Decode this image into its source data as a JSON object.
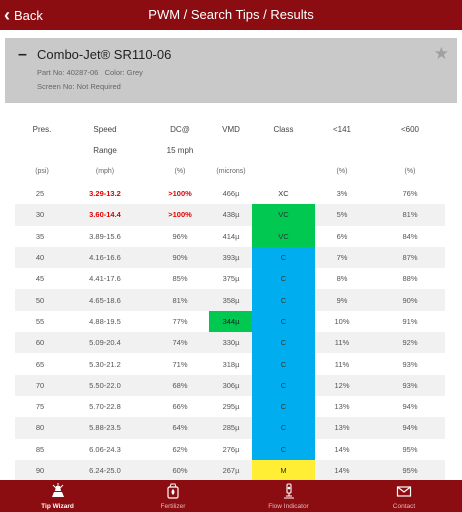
{
  "nav": {
    "back_label": "Back",
    "title": "PWM / Search Tips / Results"
  },
  "product": {
    "collapse_symbol": "–",
    "name": "Combo-Jet® SR110-06",
    "part_no": "Part No: 40287-06",
    "color": "Color: Grey",
    "screen_no": "Screen No: Not Required",
    "star_symbol": "★"
  },
  "table": {
    "headers": {
      "pres": "Pres.",
      "speed": "Speed",
      "speed2": "Range",
      "dc": "DC@",
      "dc2": "15 mph",
      "vmd": "VMD",
      "class": "Class",
      "p141": "<141",
      "p600": "<600"
    },
    "units": {
      "pres": "(psi)",
      "speed": "(mph)",
      "dc": "(%)",
      "vmd": "(microns)",
      "class": "",
      "p141": "(%)",
      "p600": "(%)"
    },
    "class_colors": {
      "XC": "#ffffff",
      "VC": "#00c850",
      "C": "#00aef0",
      "M": "#ffee33"
    },
    "rows": [
      {
        "pres": "25",
        "speed": "3.29-13.2",
        "dc": ">100%",
        "vmd": "466µ",
        "class": "XC",
        "p141": "3%",
        "p600": "76%",
        "red": true
      },
      {
        "pres": "30",
        "speed": "3.60-14.4",
        "dc": ">100%",
        "vmd": "438µ",
        "class": "VC",
        "p141": "5%",
        "p600": "81%",
        "red": true
      },
      {
        "pres": "35",
        "speed": "3.89-15.6",
        "dc": "96%",
        "vmd": "414µ",
        "class": "VC",
        "p141": "6%",
        "p600": "84%"
      },
      {
        "pres": "40",
        "speed": "4.16-16.6",
        "dc": "90%",
        "vmd": "393µ",
        "class": "C",
        "p141": "7%",
        "p600": "87%"
      },
      {
        "pres": "45",
        "speed": "4.41-17.6",
        "dc": "85%",
        "vmd": "375µ",
        "class": "C",
        "p141": "8%",
        "p600": "88%"
      },
      {
        "pres": "50",
        "speed": "4.65-18.6",
        "dc": "81%",
        "vmd": "358µ",
        "class": "C",
        "p141": "9%",
        "p600": "90%"
      },
      {
        "pres": "55",
        "speed": "4.88-19.5",
        "dc": "77%",
        "vmd": "344µ",
        "class": "C",
        "p141": "10%",
        "p600": "91%",
        "vmd_hl": true
      },
      {
        "pres": "60",
        "speed": "5.09-20.4",
        "dc": "74%",
        "vmd": "330µ",
        "class": "C",
        "p141": "11%",
        "p600": "92%"
      },
      {
        "pres": "65",
        "speed": "5.30-21.2",
        "dc": "71%",
        "vmd": "318µ",
        "class": "C",
        "p141": "11%",
        "p600": "93%"
      },
      {
        "pres": "70",
        "speed": "5.50-22.0",
        "dc": "68%",
        "vmd": "306µ",
        "class": "C",
        "p141": "12%",
        "p600": "93%"
      },
      {
        "pres": "75",
        "speed": "5.70-22.8",
        "dc": "66%",
        "vmd": "295µ",
        "class": "C",
        "p141": "13%",
        "p600": "94%"
      },
      {
        "pres": "80",
        "speed": "5.88-23.5",
        "dc": "64%",
        "vmd": "285µ",
        "class": "C",
        "p141": "13%",
        "p600": "94%"
      },
      {
        "pres": "85",
        "speed": "6.06-24.3",
        "dc": "62%",
        "vmd": "276µ",
        "class": "C",
        "p141": "14%",
        "p600": "95%"
      },
      {
        "pres": "90",
        "speed": "6.24-25.0",
        "dc": "60%",
        "vmd": "267µ",
        "class": "M",
        "p141": "14%",
        "p600": "95%"
      }
    ]
  },
  "tabs": [
    {
      "label": "Tip Wizard",
      "icon": "tip-wizard-icon",
      "active": true
    },
    {
      "label": "Fertilizer",
      "icon": "fertilizer-icon"
    },
    {
      "label": "Flow Indicator",
      "icon": "flow-indicator-icon"
    },
    {
      "label": "Contact",
      "icon": "envelope-icon"
    }
  ]
}
